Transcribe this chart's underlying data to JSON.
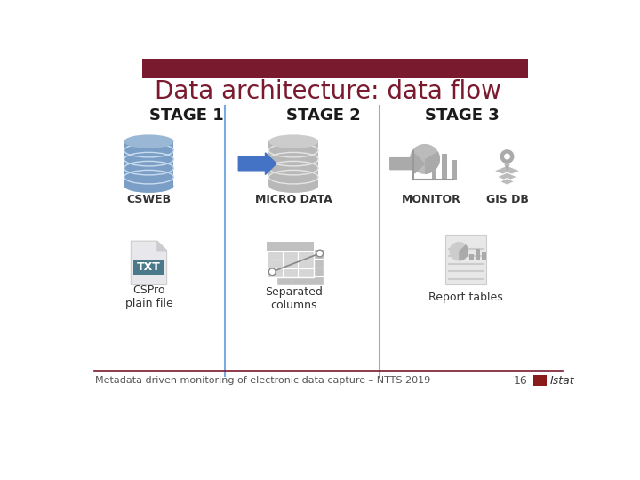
{
  "title": "Data architecture: data flow",
  "title_color": "#7A1A2E",
  "title_fontsize": 20,
  "header_bar_color": "#7A1A2E",
  "background_color": "#FFFFFF",
  "stage1_label": "STAGE 1",
  "stage2_label": "STAGE 2",
  "stage3_label": "STAGE 3",
  "stage_label_color": "#1A1A1A",
  "stage_label_fontsize": 13,
  "item1_top_label": "CSWEB",
  "item2_top_label": "MICRO DATA",
  "item3_top_label1": "MONITOR",
  "item3_top_label2": "GIS DB",
  "item1_bot_label": "CSPro\nplain file",
  "item2_bot_label": "Separated\ncolumns",
  "item3_bot_label": "Report tables",
  "footer_text": "Metadata driven monitoring of electronic data capture – NTTS 2019",
  "footer_page": "16",
  "footer_color": "#555555",
  "footer_fontsize": 8,
  "db_blue_body": "#7A9EC5",
  "db_blue_top": "#9AB8D5",
  "db_blue_line": "#C8DCF0",
  "db_gray_body": "#B8B8B8",
  "db_gray_top": "#CCCCCC",
  "db_gray_line": "#E5E5E5",
  "arrow_blue": "#4472C4",
  "arrow_gray": "#AAAAAA",
  "txt_bg": "#4A7A8A",
  "line_color1": "#7AABE0",
  "line_color2": "#AAAAAA",
  "icon_gray1": "#BBBBBB",
  "icon_gray2": "#AAAAAA",
  "icon_gray3": "#999999",
  "label_fontsize": 9,
  "label_color": "#333333",
  "istat_color": "#8B1A1A"
}
